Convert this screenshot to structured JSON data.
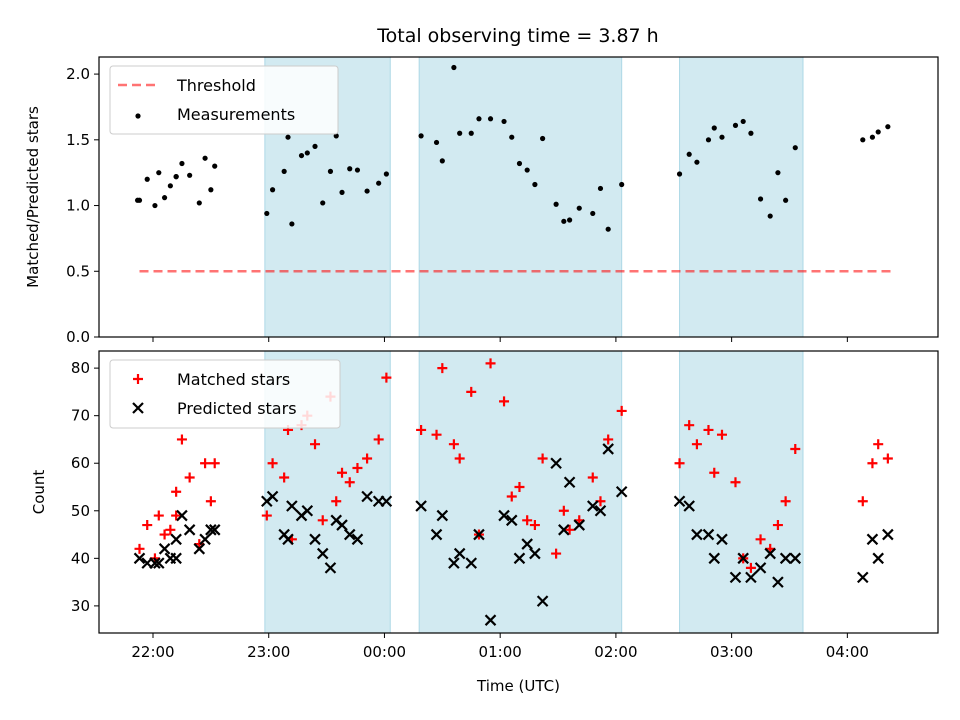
{
  "title": "Total observing time = 3.87 h",
  "colors": {
    "shade": "#add8e6",
    "threshold": "#ff0000",
    "matched": "#ff0000",
    "predicted": "#000000",
    "measurement": "#000000"
  },
  "chart_data": [
    {
      "type": "scatter",
      "ylabel": "Matched/Predicted stars",
      "ylim": [
        0,
        2.13
      ],
      "yticks": [
        "0.0",
        "0.5",
        "1.0",
        "1.5",
        "2.0"
      ],
      "xlim": [
        "21:32",
        "04:47"
      ],
      "legend": {
        "position": "top-left",
        "entries": [
          "Threshold",
          "Measurements"
        ]
      },
      "observing_windows": [
        [
          "22:58",
          "00:03"
        ],
        [
          "00:18",
          "02:03"
        ],
        [
          "02:33",
          "03:37"
        ]
      ],
      "threshold": {
        "name": "Threshold",
        "y": 0.5,
        "x": [
          "21:53",
          "04:23"
        ]
      },
      "series": [
        {
          "name": "Measurements",
          "x": [
            "21:53",
            "21:57",
            "22:01",
            "22:03",
            "22:06",
            "22:09",
            "21:52",
            "22:12",
            "22:12",
            "22:15",
            "22:19",
            "22:24",
            "22:27",
            "22:30",
            "22:32",
            "22:59",
            "23:02",
            "23:08",
            "23:10",
            "23:12",
            "23:17",
            "23:20",
            "23:24",
            "23:28",
            "23:32",
            "23:35",
            "23:38",
            "23:42",
            "23:46",
            "23:51",
            "23:57",
            "00:01",
            "00:19",
            "00:27",
            "00:30",
            "00:36",
            "00:39",
            "00:45",
            "00:49",
            "00:55",
            "01:02",
            "01:06",
            "01:10",
            "01:14",
            "01:18",
            "01:22",
            "01:29",
            "01:33",
            "01:36",
            "01:41",
            "01:48",
            "01:52",
            "01:56",
            "02:03",
            "02:33",
            "02:38",
            "02:42",
            "02:48",
            "02:51",
            "02:55",
            "03:02",
            "03:06",
            "03:10",
            "03:15",
            "03:20",
            "03:24",
            "03:28",
            "03:33",
            "04:08",
            "04:13",
            "04:16",
            "04:21"
          ],
          "y": [
            1.04,
            1.2,
            1.0,
            1.25,
            1.06,
            1.15,
            1.04,
            1.22,
            1.22,
            1.32,
            1.23,
            1.02,
            1.36,
            1.12,
            1.3,
            0.94,
            1.12,
            1.26,
            1.52,
            0.86,
            1.38,
            1.4,
            1.45,
            1.02,
            1.26,
            1.53,
            1.1,
            1.28,
            1.27,
            1.11,
            1.17,
            1.24,
            1.53,
            1.48,
            1.34,
            2.05,
            1.55,
            1.55,
            1.66,
            1.66,
            1.64,
            1.52,
            1.32,
            1.27,
            1.16,
            1.51,
            1.01,
            0.88,
            0.89,
            0.98,
            0.94,
            1.13,
            0.82,
            1.16,
            1.24,
            1.39,
            1.33,
            1.5,
            1.59,
            1.52,
            1.61,
            1.64,
            1.55,
            1.05,
            0.92,
            1.25,
            1.04,
            1.44,
            1.5,
            1.52,
            1.56,
            1.6
          ]
        }
      ]
    },
    {
      "type": "scatter",
      "ylabel": "Count",
      "xlabel": "Time (UTC)",
      "ylim": [
        24.3,
        83.6
      ],
      "yticks": [
        "30",
        "40",
        "50",
        "60",
        "70",
        "80"
      ],
      "xlim": [
        "21:32",
        "04:47"
      ],
      "xticks": [
        "22:00",
        "23:00",
        "00:00",
        "01:00",
        "02:00",
        "03:00",
        "04:00"
      ],
      "legend": {
        "position": "top-left",
        "entries": [
          "Matched stars",
          "Predicted stars"
        ]
      },
      "observing_windows": [
        [
          "22:58",
          "00:03"
        ],
        [
          "00:18",
          "02:03"
        ],
        [
          "02:33",
          "03:37"
        ]
      ],
      "series": [
        {
          "name": "Matched stars",
          "marker": "+",
          "x": [
            "21:53",
            "21:57",
            "22:01",
            "22:03",
            "22:06",
            "22:09",
            "22:12",
            "22:12",
            "22:15",
            "22:19",
            "22:24",
            "22:27",
            "22:30",
            "22:32",
            "22:59",
            "23:02",
            "23:08",
            "23:10",
            "23:12",
            "23:17",
            "23:20",
            "23:24",
            "23:28",
            "23:32",
            "23:35",
            "23:38",
            "23:42",
            "23:46",
            "23:51",
            "23:57",
            "00:01",
            "00:19",
            "00:27",
            "00:30",
            "00:36",
            "00:39",
            "00:45",
            "00:49",
            "00:55",
            "01:02",
            "01:06",
            "01:10",
            "01:14",
            "01:18",
            "01:22",
            "01:29",
            "01:33",
            "01:36",
            "01:41",
            "01:48",
            "01:52",
            "01:56",
            "02:03",
            "02:33",
            "02:38",
            "02:42",
            "02:48",
            "02:51",
            "02:55",
            "03:02",
            "03:06",
            "03:10",
            "03:15",
            "03:20",
            "03:24",
            "03:28",
            "03:33",
            "04:08",
            "04:13",
            "04:16",
            "04:21"
          ],
          "y": [
            42,
            47,
            40,
            49,
            45,
            46,
            54,
            49,
            65,
            57,
            43,
            60,
            52,
            60,
            49,
            60,
            57,
            67,
            44,
            68,
            70,
            64,
            48,
            74,
            52,
            58,
            56,
            59,
            61,
            65,
            78,
            67,
            66,
            80,
            64,
            61,
            75,
            45,
            81,
            73,
            53,
            55,
            48,
            47,
            61,
            41,
            50,
            46,
            48,
            57,
            52,
            65,
            71,
            60,
            68,
            64,
            67,
            58,
            66,
            56,
            40,
            38,
            44,
            42,
            47,
            52,
            63,
            52,
            60,
            64,
            61
          ]
        },
        {
          "name": "Predicted stars",
          "marker": "x",
          "x": [
            "21:53",
            "21:57",
            "22:01",
            "22:03",
            "22:06",
            "22:09",
            "22:12",
            "22:12",
            "22:15",
            "22:19",
            "22:24",
            "22:27",
            "22:30",
            "22:32",
            "22:59",
            "23:02",
            "23:08",
            "23:10",
            "23:12",
            "23:17",
            "23:20",
            "23:24",
            "23:28",
            "23:32",
            "23:35",
            "23:38",
            "23:42",
            "23:46",
            "23:51",
            "23:57",
            "00:01",
            "00:19",
            "00:27",
            "00:30",
            "00:36",
            "00:39",
            "00:45",
            "00:49",
            "00:55",
            "01:02",
            "01:06",
            "01:10",
            "01:14",
            "01:18",
            "01:22",
            "01:29",
            "01:33",
            "01:36",
            "01:41",
            "01:48",
            "01:52",
            "01:56",
            "02:03",
            "02:33",
            "02:38",
            "02:42",
            "02:48",
            "02:51",
            "02:55",
            "03:02",
            "03:06",
            "03:10",
            "03:15",
            "03:20",
            "03:24",
            "03:28",
            "03:33",
            "04:08",
            "04:13",
            "04:16",
            "04:21"
          ],
          "y": [
            40,
            39,
            39,
            39,
            42,
            40,
            44,
            40,
            49,
            46,
            42,
            44,
            46,
            46,
            52,
            53,
            45,
            44,
            51,
            49,
            50,
            44,
            41,
            38,
            48,
            47,
            45,
            44,
            53,
            52,
            52,
            51,
            45,
            49,
            39,
            41,
            39,
            45,
            27,
            49,
            48,
            40,
            43,
            41,
            31,
            60,
            46,
            56,
            47,
            51,
            50,
            63,
            54,
            52,
            51,
            45,
            45,
            40,
            44,
            36,
            40,
            36,
            38,
            41,
            35,
            40,
            40,
            36,
            44,
            40,
            45
          ]
        }
      ]
    }
  ]
}
